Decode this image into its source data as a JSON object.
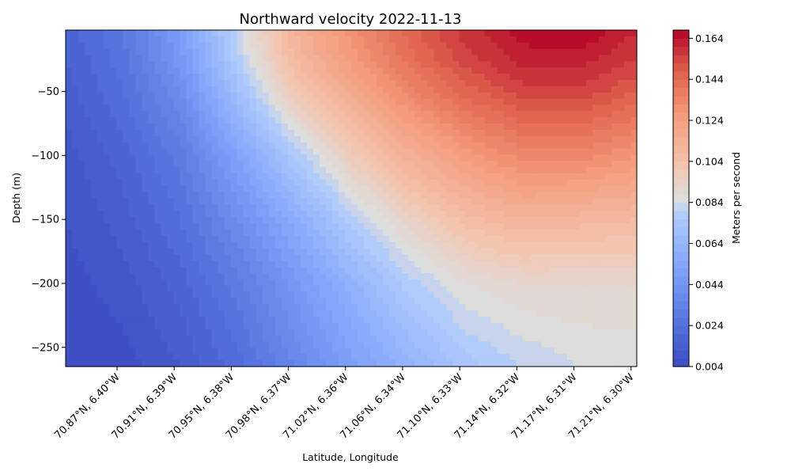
{
  "chart_data": {
    "type": "contourf",
    "title": "Northward velocity 2022-11-13",
    "xlabel": "Latitude, Longitude",
    "ylabel": "Depth (m)",
    "colorbar_label": "Meters per second",
    "colormap": "coolwarm",
    "ylim": [
      -265,
      -2
    ],
    "y_ticks": [
      -50,
      -100,
      -150,
      -200,
      -250
    ],
    "y_tick_labels": [
      "−50",
      "−100",
      "−150",
      "−200",
      "−250"
    ],
    "x_tick_labels": [
      "70.87°N, 6.40°W",
      "70.91°N, 6.39°W",
      "70.95°N, 6.38°W",
      "70.98°N, 6.37°W",
      "71.02°N, 6.36°W",
      "71.06°N, 6.34°W",
      "71.10°N, 6.33°W",
      "71.14°N, 6.32°W",
      "71.17°N, 6.31°W",
      "71.21°N, 6.30°W"
    ],
    "x_station_fractions": [
      0.09,
      0.19,
      0.29,
      0.39,
      0.49,
      0.59,
      0.69,
      0.79,
      0.89,
      0.99
    ],
    "value_range": [
      0.004,
      0.168
    ],
    "colorbar_ticks": [
      0.004,
      0.024,
      0.044,
      0.064,
      0.084,
      0.104,
      0.124,
      0.144,
      0.164
    ],
    "colorbar_tick_labels": [
      "0.004",
      "0.024",
      "0.044",
      "0.064",
      "0.084",
      "0.104",
      "0.124",
      "0.144",
      "0.164"
    ],
    "contour_levels": 41,
    "field": {
      "depths": [
        -2,
        -25,
        -50,
        -100,
        -150,
        -200,
        -265
      ],
      "columns": [
        0,
        0.1,
        0.2,
        0.3,
        0.4,
        0.5,
        0.6,
        0.7,
        0.8,
        0.9,
        1.0
      ],
      "values": [
        [
          0.018,
          0.028,
          0.048,
          0.082,
          0.112,
          0.13,
          0.146,
          0.158,
          0.166,
          0.168,
          0.16
        ],
        [
          0.016,
          0.026,
          0.046,
          0.078,
          0.108,
          0.126,
          0.142,
          0.154,
          0.162,
          0.162,
          0.156
        ],
        [
          0.014,
          0.024,
          0.04,
          0.07,
          0.1,
          0.118,
          0.134,
          0.146,
          0.154,
          0.155,
          0.148
        ],
        [
          0.01,
          0.018,
          0.03,
          0.052,
          0.076,
          0.098,
          0.114,
          0.126,
          0.134,
          0.134,
          0.128
        ],
        [
          0.008,
          0.014,
          0.024,
          0.04,
          0.058,
          0.078,
          0.094,
          0.106,
          0.112,
          0.11,
          0.108
        ],
        [
          0.006,
          0.01,
          0.018,
          0.03,
          0.046,
          0.062,
          0.078,
          0.088,
          0.092,
          0.092,
          0.092
        ],
        [
          0.005,
          0.006,
          0.012,
          0.022,
          0.036,
          0.05,
          0.062,
          0.074,
          0.08,
          0.084,
          0.085
        ]
      ]
    }
  }
}
